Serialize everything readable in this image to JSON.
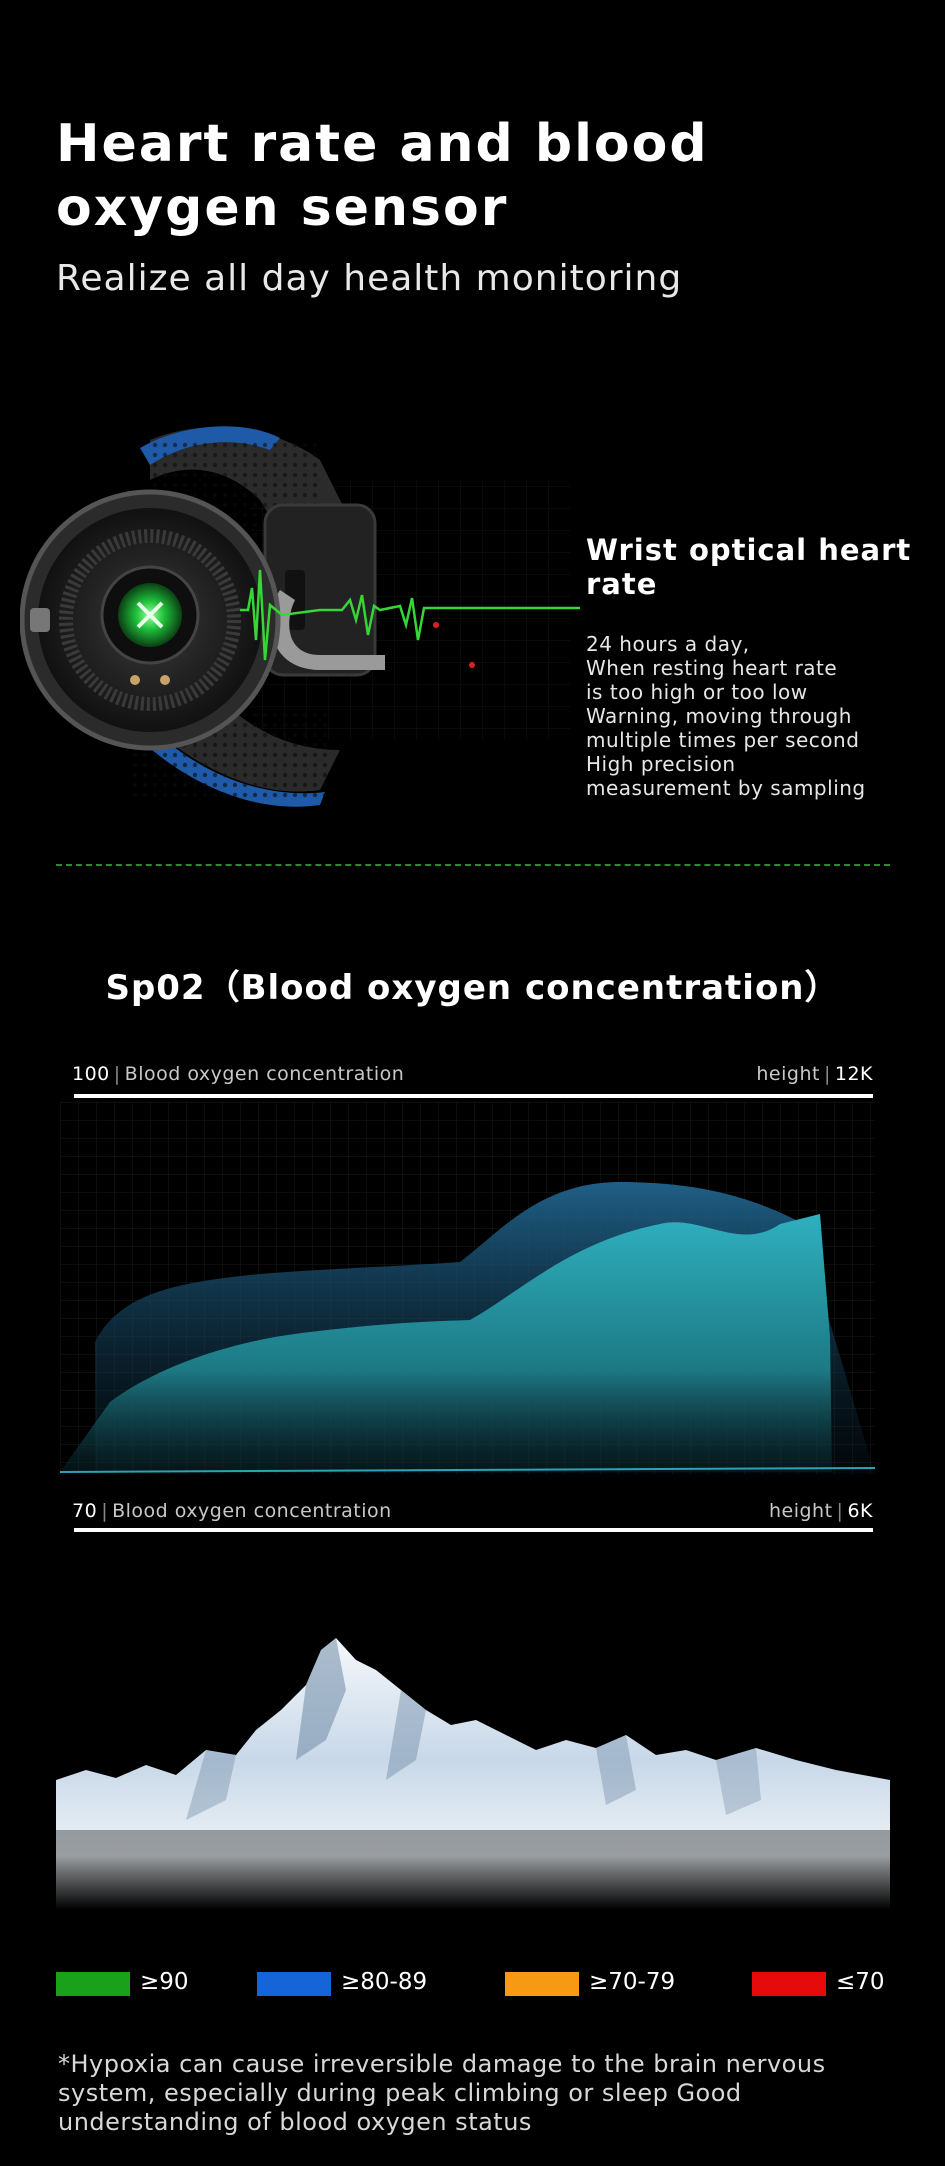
{
  "header": {
    "title_line1": "Heart rate and blood",
    "title_line2": "oxygen sensor",
    "subtitle": "Realize all day health monitoring"
  },
  "heart_rate": {
    "title_line1": "Wrist optical heart",
    "title_line2": "rate",
    "description": [
      "24 hours a day,",
      "When resting heart rate",
      "is too high or too low",
      "Warning, moving through",
      "multiple times per second",
      "High precision",
      "measurement by sampling"
    ]
  },
  "spo2": {
    "title": "Sp02（Blood oxygen concentration）",
    "top_axis": {
      "value": "100",
      "label": "Blood oxygen concentration",
      "height_label": "height",
      "height_value": "12K"
    },
    "bottom_axis": {
      "value": "70",
      "label": "Blood oxygen concentration",
      "height_label": "height",
      "height_value": "6K"
    }
  },
  "legend": [
    {
      "label": "≥90",
      "color": "#1aa11a"
    },
    {
      "label": "≥80-89",
      "color": "#1565d8"
    },
    {
      "label": "≥70-79",
      "color": "#f59a12"
    },
    {
      "label": "≤70",
      "color": "#e60a0a"
    }
  ],
  "note": [
    "*Hypoxia can cause irreversible damage to the brain nervous",
    "system, especially during peak climbing or sleep Good",
    "understanding of blood oxygen status"
  ],
  "colors": {
    "accent_green": "#2f8a2f",
    "teal": "#2aa3b5",
    "blue": "#1e5f86"
  }
}
